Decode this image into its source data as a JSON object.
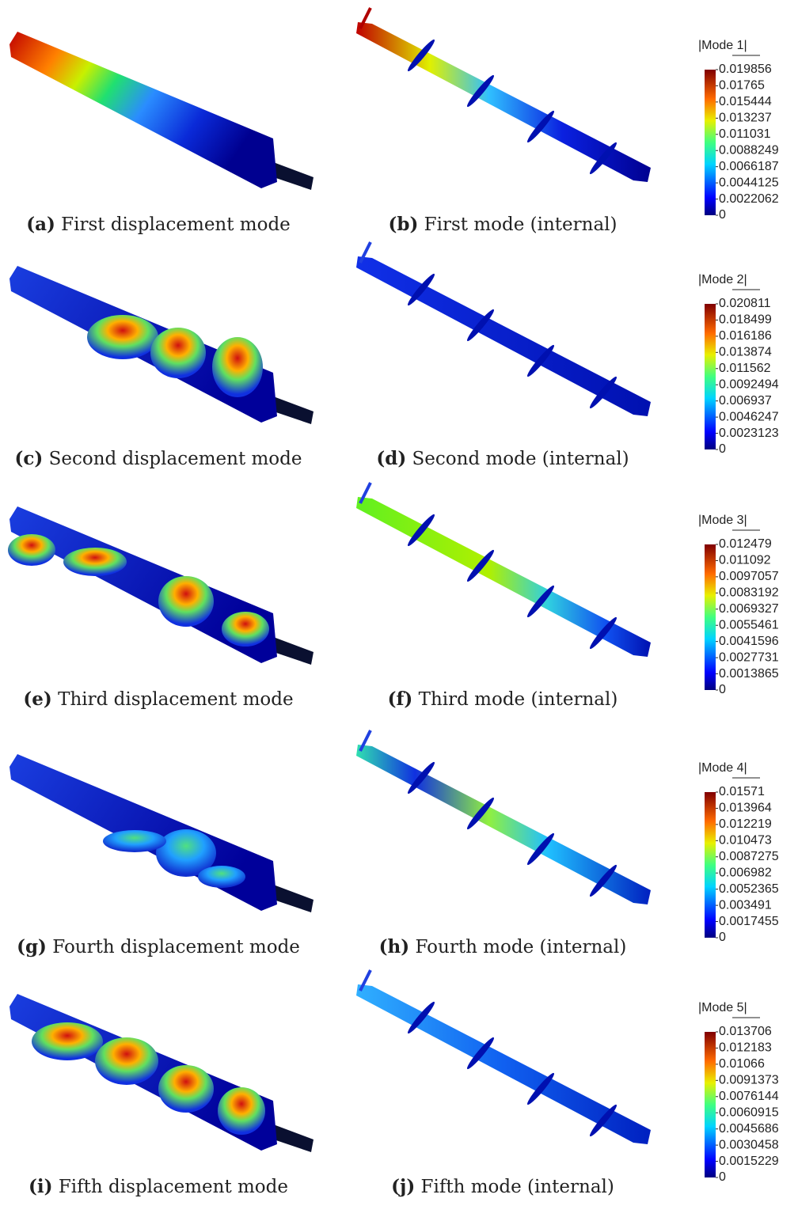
{
  "rows": [
    {
      "left_caption": {
        "label": "(a)",
        "text": "First displacement mode"
      },
      "right_caption": {
        "label": "(b)",
        "text": "First mode (internal)"
      },
      "colorbar": {
        "title": "|Mode 1|",
        "ticks": [
          "0.019856",
          "0.01765",
          "0.015444",
          "0.013237",
          "0.011031",
          "0.0088249",
          "0.0066187",
          "0.0044125",
          "0.0022062",
          "0"
        ]
      }
    },
    {
      "left_caption": {
        "label": "(c)",
        "text": "Second displacement mode"
      },
      "right_caption": {
        "label": "(d)",
        "text": "Second mode (internal)"
      },
      "colorbar": {
        "title": "|Mode 2|",
        "ticks": [
          "0.020811",
          "0.018499",
          "0.016186",
          "0.013874",
          "0.011562",
          "0.0092494",
          "0.006937",
          "0.0046247",
          "0.0023123",
          "0"
        ]
      }
    },
    {
      "left_caption": {
        "label": "(e)",
        "text": "Third displacement mode"
      },
      "right_caption": {
        "label": "(f)",
        "text": "Third mode (internal)"
      },
      "colorbar": {
        "title": "|Mode 3|",
        "ticks": [
          "0.012479",
          "0.011092",
          "0.0097057",
          "0.0083192",
          "0.0069327",
          "0.0055461",
          "0.0041596",
          "0.0027731",
          "0.0013865",
          "0"
        ]
      }
    },
    {
      "left_caption": {
        "label": "(g)",
        "text": "Fourth displacement mode"
      },
      "right_caption": {
        "label": "(h)",
        "text": "Fourth mode (internal)"
      },
      "colorbar": {
        "title": "|Mode 4|",
        "ticks": [
          "0.01571",
          "0.013964",
          "0.012219",
          "0.010473",
          "0.0087275",
          "0.006982",
          "0.0052365",
          "0.003491",
          "0.0017455",
          "0"
        ]
      }
    },
    {
      "left_caption": {
        "label": "(i)",
        "text": "Fifth displacement mode"
      },
      "right_caption": {
        "label": "(j)",
        "text": "Fifth mode (internal)"
      },
      "colorbar": {
        "title": "|Mode 5|",
        "ticks": [
          "0.013706",
          "0.012183",
          "0.01066",
          "0.0091373",
          "0.0076144",
          "0.0060915",
          "0.0045686",
          "0.0030458",
          "0.0015229",
          "0"
        ]
      }
    }
  ]
}
